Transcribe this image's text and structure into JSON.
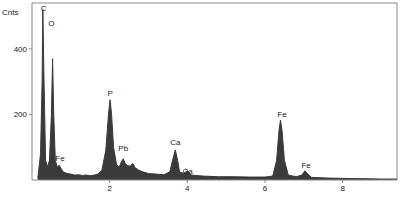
{
  "chart_data": {
    "type": "area",
    "y_label": "Cnts",
    "color": "#3a3a3a",
    "x": [
      0.15,
      0.22,
      0.26,
      0.28,
      0.31,
      0.35,
      0.4,
      0.45,
      0.5,
      0.53,
      0.56,
      0.6,
      0.65,
      0.7,
      0.75,
      0.8,
      0.9,
      1.0,
      1.1,
      1.2,
      1.3,
      1.4,
      1.5,
      1.6,
      1.7,
      1.8,
      1.9,
      1.97,
      2.01,
      2.05,
      2.1,
      2.18,
      2.25,
      2.3,
      2.35,
      2.4,
      2.45,
      2.52,
      2.6,
      2.65,
      2.75,
      2.85,
      3.0,
      3.2,
      3.4,
      3.55,
      3.62,
      3.69,
      3.75,
      3.8,
      3.9,
      4.01,
      4.1,
      4.4,
      4.8,
      5.2,
      5.6,
      6.0,
      6.2,
      6.3,
      6.36,
      6.4,
      6.44,
      6.5,
      6.6,
      6.8,
      6.95,
      7.03,
      7.1,
      7.2,
      7.6,
      8.0,
      8.5,
      9.0,
      9.4
    ],
    "values": [
      5,
      80,
      300,
      520,
      300,
      60,
      40,
      60,
      200,
      370,
      200,
      60,
      40,
      45,
      35,
      25,
      20,
      18,
      15,
      16,
      14,
      15,
      13,
      15,
      18,
      30,
      90,
      200,
      245,
      200,
      100,
      45,
      40,
      55,
      65,
      50,
      45,
      42,
      50,
      38,
      30,
      25,
      20,
      18,
      16,
      25,
      60,
      92,
      60,
      25,
      20,
      28,
      15,
      12,
      10,
      10,
      9,
      9,
      12,
      60,
      150,
      183,
      150,
      60,
      15,
      10,
      15,
      28,
      18,
      8,
      6,
      5,
      4,
      3,
      3
    ],
    "xlim": [
      0,
      9.4
    ],
    "xticks": [
      2,
      4,
      6,
      8
    ],
    "ylim": [
      0,
      540
    ],
    "yticks": [
      200,
      400
    ],
    "annotations": [
      {
        "text": "C",
        "x": 0.3,
        "y": 522
      },
      {
        "text": "O",
        "x": 0.5,
        "y": 476
      },
      {
        "text": "Fe",
        "x": 0.72,
        "y": 65
      },
      {
        "text": "P",
        "x": 2.01,
        "y": 262
      },
      {
        "text": "Pb",
        "x": 2.35,
        "y": 95
      },
      {
        "text": "Ca",
        "x": 3.69,
        "y": 112
      },
      {
        "text": "Ca",
        "x": 4.01,
        "y": 25
      },
      {
        "text": "Fe",
        "x": 6.44,
        "y": 200
      },
      {
        "text": "Fe",
        "x": 7.06,
        "y": 42
      }
    ]
  }
}
